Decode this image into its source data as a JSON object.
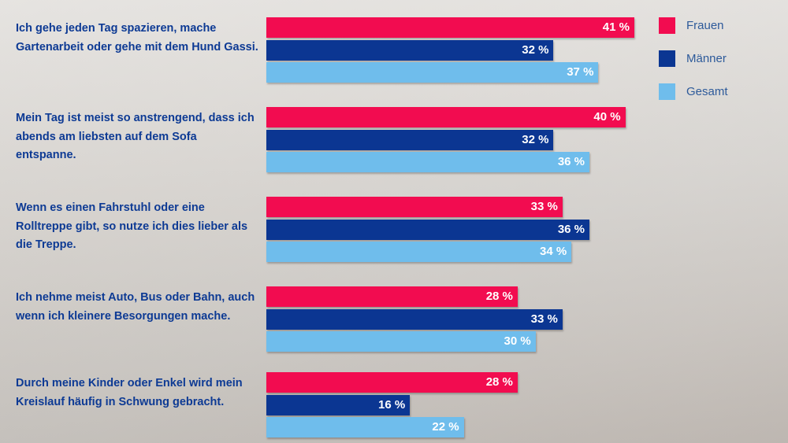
{
  "chart_data": {
    "type": "bar",
    "orientation": "horizontal",
    "unit": "%",
    "categories": [
      "Ich gehe jeden Tag spazieren, mache Gartenarbeit oder gehe mit dem Hund Gassi.",
      "Mein Tag ist meist so anstrengend, dass ich abends am liebsten auf dem Sofa entspanne.",
      "Wenn es einen Fahrstuhl oder eine Rolltreppe gibt, so nutze ich dies lieber als die Treppe.",
      "Ich nehme meist Auto, Bus oder Bahn, auch wenn ich kleinere Besorgungen mache.",
      "Durch meine Kinder oder Enkel wird mein Kreislauf häufig in Schwung gebracht."
    ],
    "series": [
      {
        "name": "Frauen",
        "color": "#f20c50",
        "values": [
          41,
          40,
          33,
          28,
          28
        ]
      },
      {
        "name": "Männer",
        "color": "#0b3692",
        "values": [
          32,
          32,
          36,
          33,
          16
        ]
      },
      {
        "name": "Gesamt",
        "color": "#6fbdec",
        "values": [
          37,
          36,
          34,
          30,
          22
        ]
      }
    ],
    "legend_position": "top-right",
    "xlim": [
      0,
      41
    ]
  }
}
